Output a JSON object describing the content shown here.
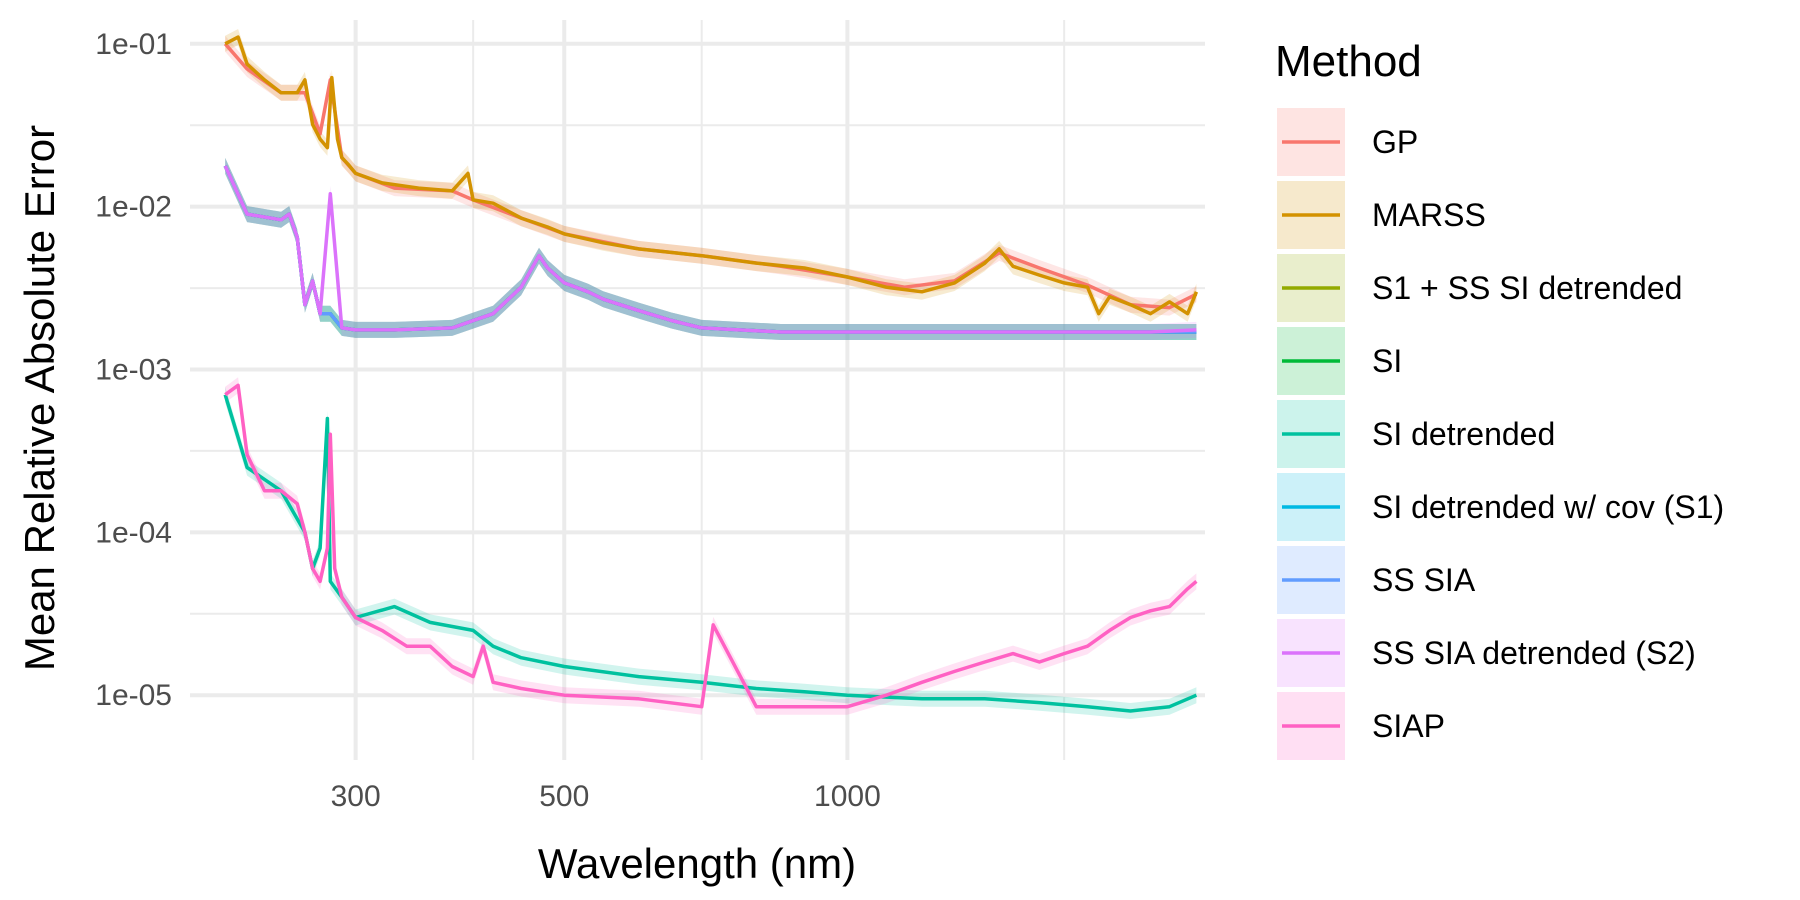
{
  "chart_data": {
    "type": "line",
    "xlabel": "Wavelength (nm)",
    "ylabel": "Mean Relative Absolute Error",
    "x_scale": "log",
    "y_scale": "log",
    "xlim": [
      200,
      2400
    ],
    "ylim": [
      4e-06,
      0.14
    ],
    "x_ticks": [
      300,
      500,
      1000
    ],
    "x_tick_labels": [
      "300",
      "500",
      "1000"
    ],
    "x_minor_grid": [
      400,
      700,
      1700
    ],
    "y_ticks": [
      0.1,
      0.01,
      0.001,
      0.0001,
      1e-05
    ],
    "y_tick_labels": [
      "1e-01",
      "1e-02",
      "1e-03",
      "1e-04",
      "1e-05"
    ],
    "y_minor_grid": [
      0.03162,
      0.003162,
      0.0003162,
      3.162e-05
    ],
    "grid": true,
    "legend": {
      "title": "Method",
      "position": "right"
    },
    "series": [
      {
        "name": "GP",
        "color": "#F8766D",
        "band": true,
        "x": [
          218,
          230,
          250,
          265,
          275,
          282,
          290,
          300,
          330,
          380,
          400,
          450,
          500,
          600,
          700,
          850,
          1000,
          1150,
          1300,
          1450,
          1600,
          1800,
          2000,
          2200,
          2350
        ],
        "y": [
          0.1,
          0.07,
          0.05,
          0.05,
          0.028,
          0.06,
          0.02,
          0.016,
          0.013,
          0.0125,
          0.011,
          0.0085,
          0.0068,
          0.0055,
          0.005,
          0.0043,
          0.0037,
          0.0032,
          0.0035,
          0.0052,
          0.0042,
          0.0033,
          0.0025,
          0.0024,
          0.0029
        ]
      },
      {
        "name": "MARSS",
        "color": "#D39200",
        "band": true,
        "x": [
          218,
          225,
          230,
          240,
          250,
          260,
          265,
          270,
          275,
          280,
          283,
          287,
          290,
          295,
          300,
          320,
          350,
          380,
          395,
          400,
          420,
          450,
          480,
          500,
          550,
          600,
          700,
          800,
          900,
          1000,
          1100,
          1200,
          1300,
          1400,
          1450,
          1500,
          1600,
          1700,
          1800,
          1850,
          1900,
          2000,
          2100,
          2200,
          2300,
          2350
        ],
        "y": [
          0.1,
          0.11,
          0.075,
          0.06,
          0.05,
          0.05,
          0.06,
          0.032,
          0.026,
          0.023,
          0.062,
          0.026,
          0.02,
          0.018,
          0.016,
          0.014,
          0.013,
          0.0125,
          0.016,
          0.011,
          0.0105,
          0.0085,
          0.0075,
          0.0068,
          0.006,
          0.0055,
          0.005,
          0.0045,
          0.0042,
          0.0037,
          0.0032,
          0.003,
          0.0034,
          0.0045,
          0.0055,
          0.0043,
          0.0038,
          0.0034,
          0.0032,
          0.0022,
          0.0028,
          0.0025,
          0.0022,
          0.0026,
          0.0022,
          0.003
        ]
      },
      {
        "name": "S1 + SS SI detrended",
        "color": "#93AA00",
        "band": true,
        "x": [
          218,
          230,
          250,
          255,
          260,
          265,
          270,
          275,
          282,
          290,
          300,
          330,
          380,
          420,
          450,
          470,
          480,
          500,
          530,
          550,
          600,
          650,
          700,
          850,
          1000,
          1200,
          1500,
          1800,
          2100,
          2350
        ],
        "y": [
          0.0178,
          0.009,
          0.0083,
          0.009,
          0.0065,
          0.0025,
          0.0035,
          0.0022,
          0.0022,
          0.0018,
          0.00175,
          0.00175,
          0.0018,
          0.0022,
          0.0032,
          0.005,
          0.0042,
          0.0034,
          0.003,
          0.0027,
          0.0023,
          0.002,
          0.0018,
          0.0017,
          0.0017,
          0.0017,
          0.0017,
          0.0017,
          0.0017,
          0.0017
        ]
      },
      {
        "name": "SI",
        "color": "#00BA38",
        "band": true,
        "x": [
          218,
          230,
          250,
          255,
          260,
          265,
          270,
          275,
          282,
          290,
          300,
          330,
          380,
          420,
          450,
          470,
          480,
          500,
          530,
          550,
          600,
          650,
          700,
          850,
          1000,
          1200,
          1500,
          1800,
          2100,
          2350
        ],
        "y": [
          0.0178,
          0.009,
          0.0083,
          0.009,
          0.0065,
          0.0025,
          0.0035,
          0.0022,
          0.0022,
          0.0018,
          0.00175,
          0.00175,
          0.0018,
          0.0022,
          0.0032,
          0.005,
          0.0042,
          0.0034,
          0.003,
          0.0027,
          0.0023,
          0.002,
          0.0018,
          0.0017,
          0.0017,
          0.0017,
          0.0017,
          0.0017,
          0.0017,
          0.0017
        ]
      },
      {
        "name": "SI detrended",
        "color": "#00C19F",
        "band": true,
        "x": [
          218,
          230,
          250,
          265,
          270,
          275,
          280,
          282,
          290,
          300,
          330,
          360,
          400,
          420,
          450,
          500,
          600,
          700,
          800,
          900,
          1000,
          1200,
          1400,
          1600,
          1800,
          2000,
          2200,
          2350
        ],
        "y": [
          0.0007,
          0.00025,
          0.00018,
          0.0001,
          6e-05,
          8e-05,
          0.0005,
          5e-05,
          4e-05,
          3e-05,
          3.5e-05,
          2.8e-05,
          2.5e-05,
          2e-05,
          1.7e-05,
          1.5e-05,
          1.3e-05,
          1.2e-05,
          1.1e-05,
          1.05e-05,
          1e-05,
          9.5e-06,
          9.5e-06,
          9e-06,
          8.5e-06,
          8e-06,
          8.5e-06,
          1e-05
        ]
      },
      {
        "name": "SI detrended w/ cov (S1)",
        "color": "#00B9E3",
        "band": true,
        "x": [
          218,
          230,
          250,
          255,
          260,
          265,
          270,
          275,
          282,
          290,
          300,
          330,
          380,
          420,
          450,
          470,
          480,
          500,
          530,
          550,
          600,
          650,
          700,
          850,
          1000,
          1200,
          1500,
          1800,
          2100,
          2350
        ],
        "y": [
          0.0178,
          0.009,
          0.0083,
          0.009,
          0.0065,
          0.0025,
          0.0035,
          0.0022,
          0.0022,
          0.0018,
          0.00175,
          0.00175,
          0.0018,
          0.0022,
          0.0032,
          0.005,
          0.0042,
          0.0034,
          0.003,
          0.0027,
          0.0023,
          0.002,
          0.0018,
          0.0017,
          0.0017,
          0.0017,
          0.0017,
          0.0017,
          0.0017,
          0.0017
        ]
      },
      {
        "name": "SS SIA",
        "color": "#619CFF",
        "band": true,
        "x": [
          218,
          230,
          250,
          255,
          260,
          265,
          270,
          275,
          282,
          290,
          300,
          330,
          380,
          420,
          450,
          470,
          480,
          500,
          530,
          550,
          600,
          650,
          700,
          850,
          1000,
          1200,
          1500,
          1800,
          2100,
          2350
        ],
        "y": [
          0.0178,
          0.009,
          0.0083,
          0.009,
          0.0065,
          0.0025,
          0.0035,
          0.0022,
          0.0022,
          0.0018,
          0.00175,
          0.00175,
          0.0018,
          0.0022,
          0.0032,
          0.005,
          0.0042,
          0.0034,
          0.003,
          0.0027,
          0.0023,
          0.002,
          0.0018,
          0.0017,
          0.0017,
          0.0017,
          0.0017,
          0.0017,
          0.0017,
          0.0017
        ]
      },
      {
        "name": "SS SIA detrended (S2)",
        "color": "#DB72FB",
        "band": true,
        "x": [
          218,
          230,
          250,
          255,
          260,
          265,
          270,
          275,
          282,
          290,
          300,
          330,
          380,
          420,
          450,
          470,
          480,
          500,
          530,
          550,
          600,
          650,
          700,
          850,
          1000,
          1200,
          1500,
          1800,
          2100,
          2350
        ],
        "y": [
          0.0178,
          0.009,
          0.0083,
          0.009,
          0.0065,
          0.0025,
          0.0035,
          0.0022,
          0.012,
          0.0018,
          0.00175,
          0.00175,
          0.0018,
          0.0022,
          0.0032,
          0.005,
          0.0042,
          0.0034,
          0.003,
          0.0027,
          0.0023,
          0.002,
          0.0018,
          0.0017,
          0.0017,
          0.0017,
          0.0017,
          0.0017,
          0.0017,
          0.00175
        ]
      },
      {
        "name": "SIAP",
        "color": "#FF61C3",
        "band": true,
        "x": [
          218,
          225,
          230,
          240,
          250,
          260,
          265,
          270,
          275,
          280,
          282,
          285,
          290,
          300,
          320,
          340,
          360,
          380,
          400,
          410,
          420,
          450,
          500,
          600,
          700,
          720,
          800,
          900,
          1000,
          1100,
          1200,
          1300,
          1400,
          1500,
          1600,
          1700,
          1800,
          1900,
          2000,
          2100,
          2200,
          2300,
          2350
        ],
        "y": [
          0.0007,
          0.0008,
          0.0003,
          0.00018,
          0.00018,
          0.00015,
          0.0001,
          6e-05,
          5e-05,
          8e-05,
          0.0004,
          6e-05,
          4e-05,
          3e-05,
          2.5e-05,
          2e-05,
          2e-05,
          1.5e-05,
          1.3e-05,
          2e-05,
          1.2e-05,
          1.1e-05,
          1e-05,
          9.5e-06,
          8.5e-06,
          2.7e-05,
          8.5e-06,
          8.5e-06,
          8.5e-06,
          1e-05,
          1.2e-05,
          1.4e-05,
          1.6e-05,
          1.8e-05,
          1.6e-05,
          1.8e-05,
          2e-05,
          2.5e-05,
          3e-05,
          3.3e-05,
          3.5e-05,
          4.5e-05,
          5e-05
        ]
      }
    ]
  }
}
